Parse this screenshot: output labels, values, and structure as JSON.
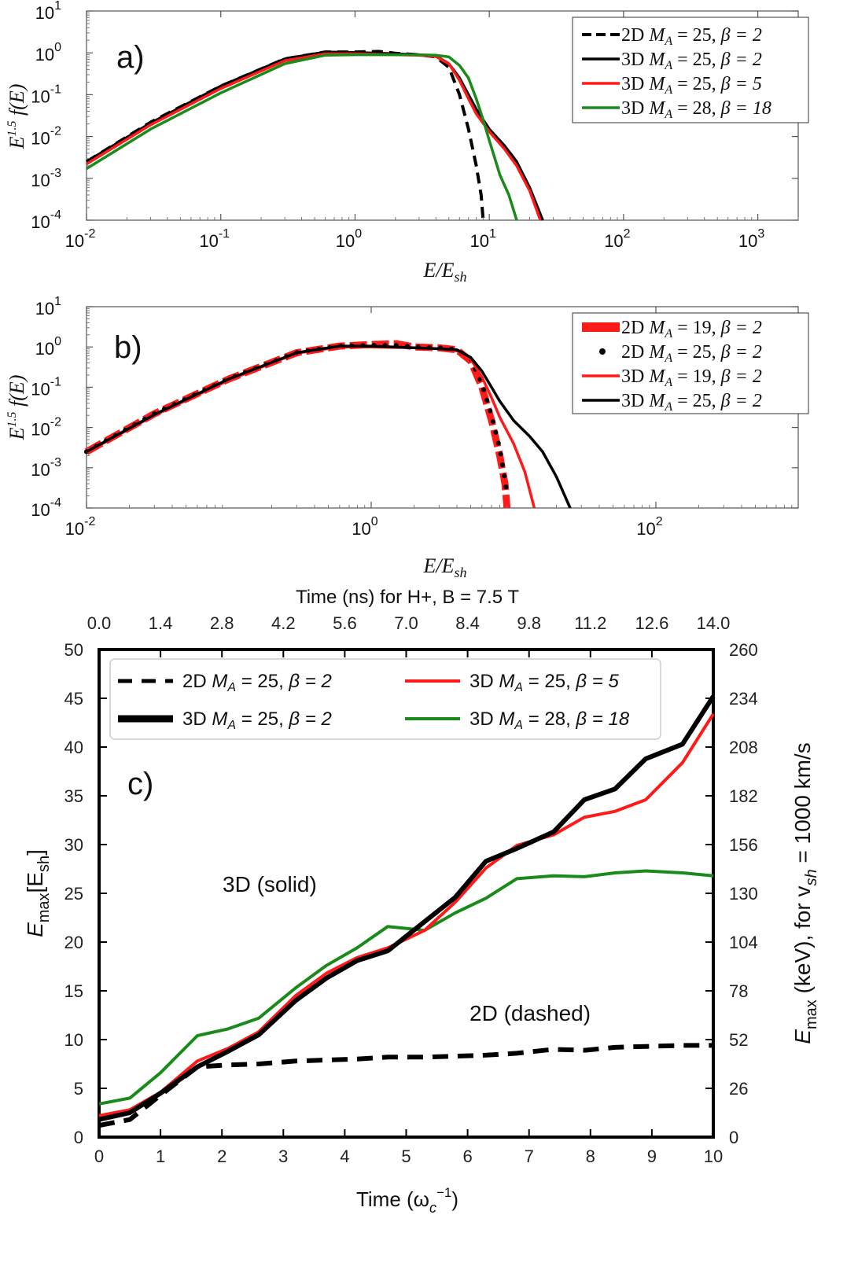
{
  "chart_data": [
    {
      "panel": "a",
      "type": "line",
      "panel_label": "a)",
      "xlabel": "E/E_sh",
      "ylabel": "E^1.5 f(E)",
      "xscale": "log",
      "yscale": "log",
      "xlim": [
        0.01,
        2000
      ],
      "ylim": [
        0.0001,
        10
      ],
      "xticks": [
        "10",
        "10",
        "10",
        "10",
        "10",
        "10"
      ],
      "xtick_exponents": [
        "-2",
        "-1",
        "0",
        "1",
        "2",
        "3"
      ],
      "yticks": [
        "10",
        "10",
        "10",
        "10",
        "10",
        "10"
      ],
      "ytick_exponents": [
        "-4",
        "-3",
        "-2",
        "-1",
        "0",
        "1"
      ],
      "legend_position": "top-right",
      "series": [
        {
          "name": "2D M_A = 25, β = 2",
          "dim": "2D",
          "ma": "M",
          "ma_sub": "A",
          "ma_val": "= 25,",
          "beta": "β = 2",
          "color": "#000000",
          "style": "dashed",
          "x": [
            0.01,
            0.03,
            0.1,
            0.3,
            0.6,
            1,
            1.5,
            2,
            3,
            4,
            5,
            6,
            7,
            8,
            8.7,
            9.0
          ],
          "y": [
            0.0025,
            0.022,
            0.16,
            0.72,
            1.05,
            1.05,
            1.08,
            0.98,
            0.9,
            0.8,
            0.45,
            0.1,
            0.015,
            0.002,
            0.0004,
            0.0001
          ]
        },
        {
          "name": "3D M_A = 25, β = 2",
          "dim": "3D",
          "ma": "M",
          "ma_sub": "A",
          "ma_val": "= 25,",
          "beta": "β = 2",
          "color": "#000000",
          "style": "solid",
          "x": [
            0.01,
            0.03,
            0.1,
            0.3,
            0.6,
            1,
            2,
            3,
            4,
            5,
            6,
            7,
            8,
            10,
            13,
            16,
            20,
            25
          ],
          "y": [
            0.0025,
            0.021,
            0.16,
            0.72,
            1.05,
            1.02,
            0.95,
            0.9,
            0.85,
            0.55,
            0.25,
            0.1,
            0.045,
            0.015,
            0.006,
            0.0025,
            0.0006,
            0.0001
          ]
        },
        {
          "name": "3D M_A = 25, β = 5",
          "dim": "3D",
          "ma": "M",
          "ma_sub": "A",
          "ma_val": "= 25,",
          "beta": "β = 5",
          "color": "#ff1a1a",
          "style": "solid",
          "x": [
            0.01,
            0.03,
            0.1,
            0.3,
            0.6,
            1,
            2,
            3,
            4,
            5,
            6,
            7,
            8,
            10,
            13,
            16,
            20,
            24
          ],
          "y": [
            0.0022,
            0.019,
            0.14,
            0.65,
            0.95,
            0.95,
            0.9,
            0.88,
            0.82,
            0.55,
            0.22,
            0.08,
            0.035,
            0.013,
            0.005,
            0.002,
            0.0005,
            0.0001
          ]
        },
        {
          "name": "3D M_A = 28, β = 18",
          "dim": "3D",
          "ma": "M",
          "ma_sub": "A",
          "ma_val": "= 28,",
          "beta": "β = 18",
          "color": "#1a8a1a",
          "style": "solid",
          "x": [
            0.01,
            0.03,
            0.1,
            0.3,
            0.6,
            1,
            2,
            3,
            4,
            5,
            6,
            7,
            8,
            9,
            10,
            11,
            12,
            14,
            16
          ],
          "y": [
            0.0017,
            0.015,
            0.11,
            0.55,
            0.88,
            0.9,
            0.9,
            0.9,
            0.88,
            0.8,
            0.5,
            0.25,
            0.08,
            0.025,
            0.008,
            0.003,
            0.0012,
            0.0004,
            0.0001
          ]
        }
      ]
    },
    {
      "panel": "b",
      "type": "line",
      "panel_label": "b)",
      "xlabel": "E/E_sh",
      "ylabel": "E^1.5 f(E)",
      "xscale": "log",
      "yscale": "log",
      "xlim": [
        0.01,
        1000
      ],
      "ylim": [
        0.0001,
        10
      ],
      "xticks": [
        "10",
        "10",
        "10"
      ],
      "xtick_exponents": [
        "-2",
        "0",
        "2"
      ],
      "yticks": [
        "10",
        "10",
        "10",
        "10",
        "10",
        "10"
      ],
      "ytick_exponents": [
        "-4",
        "-3",
        "-2",
        "-1",
        "0",
        "1"
      ],
      "legend_position": "top-right",
      "series": [
        {
          "name": "2D M_A = 19, β = 2",
          "dim": "2D",
          "ma": "M",
          "ma_sub": "A",
          "ma_val": "= 19,",
          "beta": "β = 2",
          "color": "#ff1a1a",
          "style": "thick-dashed",
          "x": [
            0.01,
            0.03,
            0.1,
            0.3,
            0.6,
            1,
            1.5,
            2,
            3,
            4,
            5,
            6,
            7,
            8,
            8.7,
            9.0
          ],
          "y": [
            0.0025,
            0.022,
            0.16,
            0.72,
            1.05,
            1.15,
            1.2,
            1.0,
            0.95,
            0.85,
            0.45,
            0.1,
            0.015,
            0.002,
            0.0004,
            0.0001
          ]
        },
        {
          "name": "2D M_A = 25, β = 2",
          "dim": "2D",
          "ma": "M",
          "ma_sub": "A",
          "ma_val": "= 25,",
          "beta": "β = 2",
          "color": "#000000",
          "style": "dotted",
          "x": [
            0.01,
            0.03,
            0.1,
            0.3,
            0.6,
            1,
            1.5,
            2,
            3,
            4,
            5,
            6,
            7,
            8,
            8.7,
            9.0
          ],
          "y": [
            0.0025,
            0.022,
            0.16,
            0.72,
            1.05,
            1.1,
            1.1,
            1.0,
            0.95,
            0.85,
            0.5,
            0.12,
            0.02,
            0.003,
            0.0005,
            0.0002
          ]
        },
        {
          "name": "3D M_A = 19, β = 2",
          "dim": "3D",
          "ma": "M",
          "ma_sub": "A",
          "ma_val": "= 19,",
          "beta": "β = 2",
          "color": "#ff1a1a",
          "style": "solid",
          "x": [
            0.01,
            0.03,
            0.1,
            0.3,
            0.6,
            1,
            2,
            3,
            4,
            5,
            6,
            7,
            8,
            10,
            12,
            14
          ],
          "y": [
            0.0024,
            0.02,
            0.15,
            0.7,
            1.0,
            1.0,
            0.95,
            0.9,
            0.8,
            0.5,
            0.18,
            0.055,
            0.018,
            0.004,
            0.0008,
            0.0001
          ]
        },
        {
          "name": "3D M_A = 25, β = 2",
          "dim": "3D",
          "ma": "M",
          "ma_sub": "A",
          "ma_val": "= 25,",
          "beta": "β = 2",
          "color": "#000000",
          "style": "solid",
          "x": [
            0.01,
            0.03,
            0.1,
            0.3,
            0.6,
            1,
            2,
            3,
            4,
            5,
            6,
            7,
            8,
            10,
            13,
            16,
            20,
            25
          ],
          "y": [
            0.0025,
            0.021,
            0.16,
            0.72,
            1.05,
            1.05,
            0.95,
            0.9,
            0.85,
            0.55,
            0.25,
            0.1,
            0.045,
            0.015,
            0.006,
            0.0025,
            0.0006,
            0.0001
          ]
        }
      ]
    },
    {
      "panel": "c",
      "type": "line",
      "panel_label": "c)",
      "top_axis_title": "Time (ns) for H+, B = 7.5 T",
      "top_ticks": [
        "0.0",
        "1.4",
        "2.8",
        "4.2",
        "5.6",
        "7.0",
        "8.4",
        "9.8",
        "11.2",
        "12.6",
        "14.0"
      ],
      "xlabel": "Time (ω",
      "xlabel_sub": "c",
      "xlabel_sup": "−1",
      "ylabel": "E",
      "ylabel_sub": "max",
      "ylabel_bracket": "[E",
      "ylabel_bracket_sub": "sh",
      "right_ylabel": "E",
      "right_ylabel_sub": "max",
      "right_ylabel_rest": " (keV), for v",
      "right_ylabel_v_sub": "sh",
      "right_ylabel_end": " = 1000 km/s",
      "xlim": [
        0,
        10
      ],
      "ylim": [
        0,
        50
      ],
      "xticks": [
        "0",
        "1",
        "2",
        "3",
        "4",
        "5",
        "6",
        "7",
        "8",
        "9",
        "10"
      ],
      "yticks": [
        "0",
        "5",
        "10",
        "15",
        "20",
        "25",
        "30",
        "35",
        "40",
        "45",
        "50"
      ],
      "right_yticks": [
        "0",
        "26",
        "52",
        "78",
        "104",
        "130",
        "156",
        "182",
        "208",
        "234",
        "260"
      ],
      "annotations": [
        "3D (solid)",
        "2D (dashed)"
      ],
      "legend_position": "top-left",
      "series": [
        {
          "name": "2D M_A = 25, β = 2",
          "dim": "2D",
          "ma": "M",
          "ma_sub": "A",
          "ma_val": "= 25,",
          "beta": "β = 2",
          "color": "#000000",
          "style": "dashed",
          "x": [
            0,
            0.5,
            1,
            1.6,
            2.1,
            2.6,
            3.2,
            3.7,
            4.2,
            4.7,
            5.3,
            5.8,
            6.3,
            6.8,
            7.4,
            7.9,
            8.4,
            8.9,
            9.5,
            10
          ],
          "y": [
            1.2,
            1.8,
            4.3,
            7.2,
            7.4,
            7.5,
            7.8,
            7.9,
            8.0,
            8.2,
            8.2,
            8.3,
            8.4,
            8.6,
            9.0,
            8.9,
            9.2,
            9.3,
            9.4,
            9.4
          ]
        },
        {
          "name": "3D M_A = 25, β = 2",
          "dim": "3D",
          "ma": "M",
          "ma_sub": "A",
          "ma_val": "= 25,",
          "beta": "β = 2",
          "color": "#000000",
          "style": "solid-thick",
          "x": [
            0,
            0.5,
            1,
            1.6,
            2.1,
            2.6,
            3.2,
            3.7,
            4.2,
            4.7,
            5.3,
            5.8,
            6.3,
            6.8,
            7.4,
            7.9,
            8.4,
            8.9,
            9.5,
            10
          ],
          "y": [
            1.8,
            2.5,
            4.5,
            7.2,
            8.8,
            10.5,
            14.0,
            16.3,
            18.1,
            19.1,
            22.1,
            24.6,
            28.3,
            29.6,
            31.3,
            34.6,
            35.7,
            38.8,
            40.3,
            45.2
          ]
        },
        {
          "name": "3D M_A = 25, β = 5",
          "dim": "3D",
          "ma": "M",
          "ma_sub": "A",
          "ma_val": "= 25,",
          "beta": "β = 5",
          "color": "#ff1a1a",
          "style": "solid",
          "x": [
            0,
            0.5,
            1,
            1.6,
            2.1,
            2.6,
            3.2,
            3.7,
            4.2,
            4.7,
            5.3,
            5.8,
            6.3,
            6.8,
            7.4,
            7.9,
            8.4,
            8.9,
            9.5,
            10
          ],
          "y": [
            2.2,
            2.8,
            4.6,
            7.8,
            9.1,
            10.8,
            14.5,
            16.8,
            18.4,
            19.4,
            21.2,
            24.1,
            27.6,
            29.9,
            31.0,
            32.8,
            33.4,
            34.6,
            38.4,
            43.4
          ]
        },
        {
          "name": "3D M_A = 28, β = 18",
          "dim": "3D",
          "ma": "M",
          "ma_sub": "A",
          "ma_val": "= 28,",
          "beta": "β = 18",
          "color": "#1a8a1a",
          "style": "solid",
          "x": [
            0,
            0.5,
            1,
            1.6,
            2.1,
            2.6,
            3.2,
            3.7,
            4.2,
            4.7,
            5.3,
            5.8,
            6.3,
            6.8,
            7.4,
            7.9,
            8.4,
            8.9,
            9.5,
            10
          ],
          "y": [
            3.4,
            4.0,
            6.6,
            10.4,
            11.1,
            12.2,
            15.3,
            17.6,
            19.4,
            21.6,
            21.2,
            23.0,
            24.5,
            26.5,
            26.8,
            26.7,
            27.1,
            27.3,
            27.1,
            26.8
          ]
        }
      ]
    }
  ]
}
